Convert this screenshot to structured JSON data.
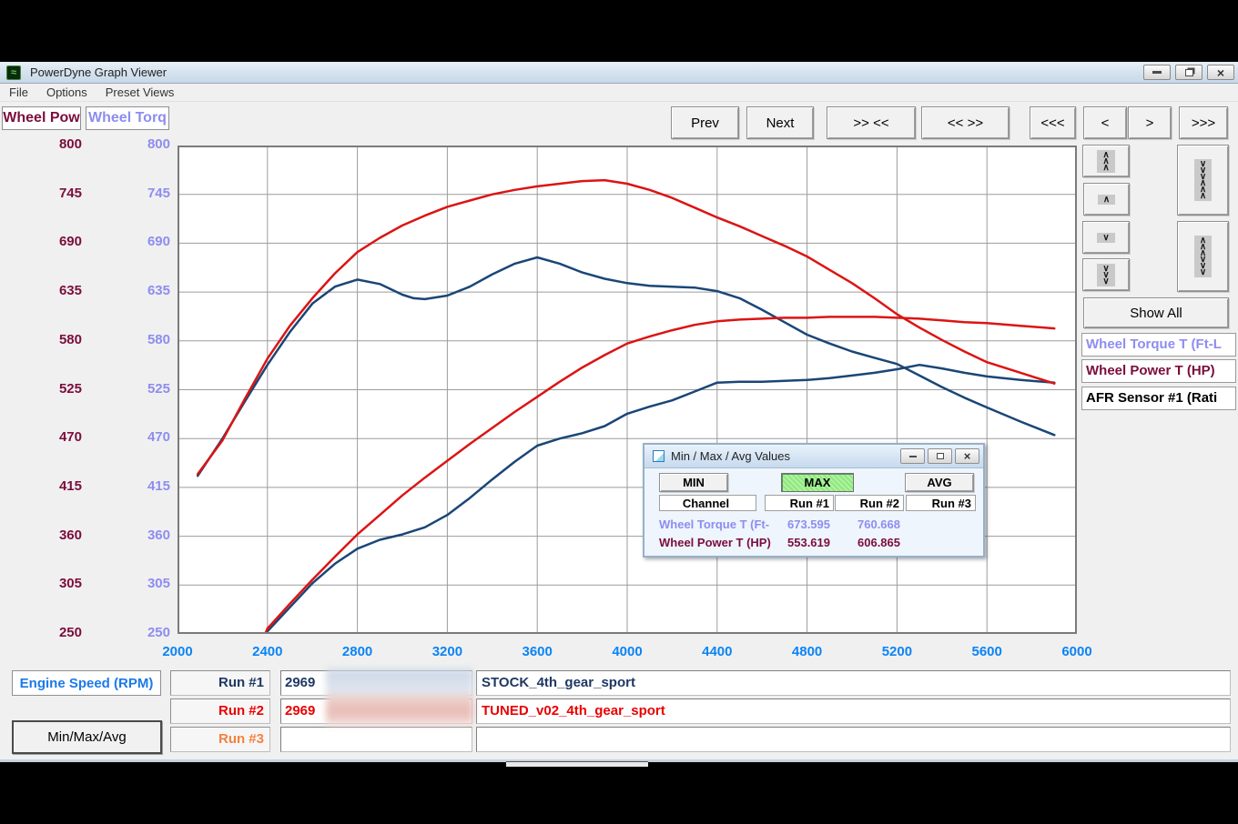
{
  "window": {
    "title": "PowerDyne Graph Viewer",
    "menu": [
      "File",
      "Options",
      "Preset Views"
    ],
    "controls": {
      "minimize": "minimize",
      "restore": "restore",
      "close": "×"
    }
  },
  "toolbar": {
    "buttons": [
      "Prev",
      "Next",
      ">> <<",
      "<< >>",
      "<<<",
      "<",
      ">",
      ">>>"
    ]
  },
  "chart": {
    "left_axis_channel": "Wheel Pow",
    "right_axis_channel": "Wheel Torq",
    "y_ticks": [
      800,
      745,
      690,
      635,
      580,
      525,
      470,
      415,
      360,
      305,
      250
    ],
    "x_ticks": [
      2000,
      2400,
      2800,
      3200,
      3600,
      4000,
      4400,
      4800,
      5200,
      5600,
      6000
    ]
  },
  "chart_data": {
    "type": "line",
    "xlabel": "Engine Speed (RPM)",
    "x_range": [
      2000,
      6000
    ],
    "y_range": [
      250,
      800
    ],
    "grid": true,
    "series": [
      {
        "name": "Run #1 Wheel Torque T (Ft-Lb) - STOCK",
        "color": "#1a4677",
        "points": [
          [
            2090,
            428
          ],
          [
            2200,
            470
          ],
          [
            2300,
            512
          ],
          [
            2400,
            553
          ],
          [
            2500,
            590
          ],
          [
            2600,
            622
          ],
          [
            2700,
            641
          ],
          [
            2800,
            649
          ],
          [
            2900,
            644
          ],
          [
            3000,
            632
          ],
          [
            3050,
            628
          ],
          [
            3100,
            627
          ],
          [
            3200,
            631
          ],
          [
            3300,
            641
          ],
          [
            3400,
            655
          ],
          [
            3500,
            667
          ],
          [
            3600,
            674
          ],
          [
            3700,
            667
          ],
          [
            3800,
            657
          ],
          [
            3900,
            650
          ],
          [
            4000,
            645
          ],
          [
            4100,
            642
          ],
          [
            4200,
            641
          ],
          [
            4300,
            640
          ],
          [
            4400,
            636
          ],
          [
            4500,
            628
          ],
          [
            4600,
            615
          ],
          [
            4700,
            601
          ],
          [
            4800,
            587
          ],
          [
            4900,
            577
          ],
          [
            5000,
            568
          ],
          [
            5100,
            561
          ],
          [
            5200,
            554
          ],
          [
            5300,
            541
          ],
          [
            5400,
            528
          ],
          [
            5500,
            516
          ],
          [
            5600,
            505
          ],
          [
            5750,
            489
          ],
          [
            5900,
            474
          ]
        ]
      },
      {
        "name": "Run #1 Wheel Power T (HP) - STOCK",
        "color": "#1a4677",
        "points": [
          [
            2390,
            250
          ],
          [
            2400,
            253
          ],
          [
            2500,
            280
          ],
          [
            2600,
            307
          ],
          [
            2700,
            329
          ],
          [
            2800,
            346
          ],
          [
            2900,
            356
          ],
          [
            3000,
            362
          ],
          [
            3100,
            370
          ],
          [
            3200,
            384
          ],
          [
            3300,
            403
          ],
          [
            3400,
            424
          ],
          [
            3500,
            444
          ],
          [
            3600,
            462
          ],
          [
            3700,
            470
          ],
          [
            3800,
            476
          ],
          [
            3900,
            484
          ],
          [
            4000,
            498
          ],
          [
            4100,
            506
          ],
          [
            4200,
            513
          ],
          [
            4300,
            523
          ],
          [
            4400,
            533
          ],
          [
            4500,
            534
          ],
          [
            4600,
            534
          ],
          [
            4700,
            535
          ],
          [
            4800,
            536
          ],
          [
            4900,
            538
          ],
          [
            5000,
            541
          ],
          [
            5100,
            544
          ],
          [
            5200,
            548
          ],
          [
            5300,
            553
          ],
          [
            5400,
            549
          ],
          [
            5500,
            544
          ],
          [
            5600,
            540
          ],
          [
            5750,
            536
          ],
          [
            5900,
            533
          ]
        ]
      },
      {
        "name": "Run #2 Wheel Torque T (Ft-Lb) - TUNED_v02",
        "color": "#dc1414",
        "points": [
          [
            2090,
            430
          ],
          [
            2200,
            468
          ],
          [
            2300,
            515
          ],
          [
            2400,
            560
          ],
          [
            2500,
            597
          ],
          [
            2600,
            628
          ],
          [
            2700,
            656
          ],
          [
            2800,
            680
          ],
          [
            2900,
            696
          ],
          [
            3000,
            710
          ],
          [
            3100,
            721
          ],
          [
            3200,
            731
          ],
          [
            3300,
            738
          ],
          [
            3400,
            745
          ],
          [
            3500,
            750
          ],
          [
            3600,
            754
          ],
          [
            3700,
            757
          ],
          [
            3800,
            760
          ],
          [
            3900,
            761
          ],
          [
            4000,
            757
          ],
          [
            4100,
            750
          ],
          [
            4200,
            741
          ],
          [
            4300,
            730
          ],
          [
            4400,
            719
          ],
          [
            4500,
            709
          ],
          [
            4600,
            698
          ],
          [
            4700,
            687
          ],
          [
            4800,
            675
          ],
          [
            4900,
            660
          ],
          [
            5000,
            645
          ],
          [
            5100,
            628
          ],
          [
            5200,
            610
          ],
          [
            5300,
            595
          ],
          [
            5400,
            581
          ],
          [
            5500,
            568
          ],
          [
            5600,
            556
          ],
          [
            5750,
            544
          ],
          [
            5900,
            532
          ]
        ]
      },
      {
        "name": "Run #2 Wheel Power T (HP) - TUNED_v02",
        "color": "#dc1414",
        "points": [
          [
            2390,
            250
          ],
          [
            2400,
            256
          ],
          [
            2500,
            284
          ],
          [
            2600,
            311
          ],
          [
            2700,
            337
          ],
          [
            2800,
            362
          ],
          [
            2900,
            384
          ],
          [
            3000,
            406
          ],
          [
            3100,
            426
          ],
          [
            3200,
            445
          ],
          [
            3300,
            464
          ],
          [
            3400,
            482
          ],
          [
            3500,
            500
          ],
          [
            3600,
            517
          ],
          [
            3700,
            534
          ],
          [
            3800,
            550
          ],
          [
            3900,
            564
          ],
          [
            4000,
            577
          ],
          [
            4100,
            585
          ],
          [
            4200,
            592
          ],
          [
            4300,
            598
          ],
          [
            4400,
            602
          ],
          [
            4500,
            604
          ],
          [
            4600,
            605
          ],
          [
            4700,
            606
          ],
          [
            4800,
            606
          ],
          [
            4900,
            607
          ],
          [
            5000,
            607
          ],
          [
            5100,
            607
          ],
          [
            5200,
            606
          ],
          [
            5300,
            605
          ],
          [
            5400,
            603
          ],
          [
            5500,
            601
          ],
          [
            5600,
            600
          ],
          [
            5750,
            597
          ],
          [
            5900,
            594
          ]
        ]
      }
    ]
  },
  "nav_panel": {
    "show_all_label": "Show All",
    "small_buttons": [
      "scroll-up-fast",
      "scroll-up",
      "scroll-down",
      "scroll-down-fast"
    ],
    "tall_buttons": [
      "compress-vertical",
      "expand-vertical"
    ],
    "channels": [
      {
        "label": "Wheel Torque T (Ft-L",
        "color": "#8d8df0"
      },
      {
        "label": "Wheel Power T (HP)",
        "color": "#7b0d3d"
      },
      {
        "label": "AFR Sensor #1 (Rati",
        "color": "#000000"
      }
    ]
  },
  "minmax_dialog": {
    "title": "Min / Max / Avg Values",
    "stat_buttons": [
      "MIN",
      "MAX",
      "AVG"
    ],
    "active_stat": "MAX",
    "columns": [
      "Channel",
      "Run #1",
      "Run #2",
      "Run #3"
    ],
    "rows": [
      {
        "channel": "Wheel Torque T (Ft-",
        "color": "#8d8df0",
        "values": [
          "673.595",
          "760.668",
          ""
        ]
      },
      {
        "channel": "Wheel Power T (HP)",
        "color": "#7b0d3d",
        "values": [
          "553.619",
          "606.865",
          ""
        ]
      }
    ]
  },
  "bottom_panel": {
    "axis_channel_label": "Engine Speed (RPM)",
    "minmax_button_label": "Min/Max/Avg",
    "runs": [
      {
        "label": "Run #1",
        "color": "#1f3864",
        "value": "2969",
        "name": "STOCK_4th_gear_sport"
      },
      {
        "label": "Run #2",
        "color": "#ea0000",
        "value": "2969",
        "name": "TUNED_v02_4th_gear_sport"
      },
      {
        "label": "Run #3",
        "color": "#f4813f",
        "value": "",
        "name": ""
      }
    ]
  }
}
